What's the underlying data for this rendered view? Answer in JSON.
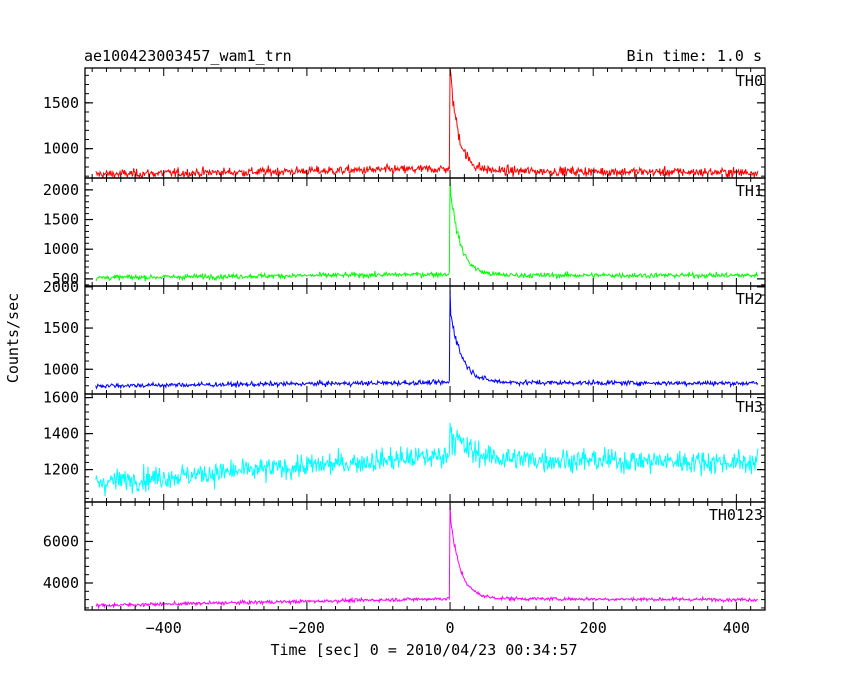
{
  "chart_data": {
    "type": "line",
    "title": "ae100423003457_wam1_trn",
    "bin_time_label": "Bin time: 1.0 s",
    "xlabel": "Time [sec] 0 = 2010/04/23 00:34:57",
    "ylabel": "Counts/sec",
    "xlim": [
      -510,
      440
    ],
    "x_ticks": [
      -400,
      -200,
      0,
      200,
      400
    ],
    "x_tick_labels": [
      "−400",
      "−200",
      "0",
      "200",
      "400"
    ],
    "grid": false,
    "legend": "none",
    "x_range": [
      -495,
      430
    ],
    "burst_time": 0,
    "panels": [
      {
        "name": "TH0",
        "color": "#ff0000",
        "ylim": [
          680,
          1880
        ],
        "y_ticks": [
          1000,
          1500
        ],
        "y_tick_labels": [
          "1000",
          "1500"
        ],
        "pre_start": 720,
        "pre_end": 780,
        "pre_noise": 35,
        "peak": 1880,
        "decay_tail": 760,
        "decay_amp": 1100,
        "decay_tau": 12,
        "post_end": 740,
        "post_noise": 35
      },
      {
        "name": "TH1",
        "color": "#00ff00",
        "ylim": [
          380,
          2200
        ],
        "y_ticks": [
          500,
          1000,
          1500,
          2000
        ],
        "y_tick_labels": [
          "500",
          "1000",
          "1500",
          "2000"
        ],
        "pre_start": 520,
        "pre_end": 580,
        "pre_noise": 30,
        "peak": 2180,
        "decay_tail": 560,
        "decay_amp": 1500,
        "decay_tau": 14,
        "post_end": 560,
        "post_noise": 30
      },
      {
        "name": "TH2",
        "color": "#0000ff",
        "ylim": [
          700,
          2010
        ],
        "y_ticks": [
          1000,
          1500,
          2000
        ],
        "y_tick_labels": [
          "1000",
          "1500",
          "2000"
        ],
        "pre_start": 800,
        "pre_end": 840,
        "pre_noise": 20,
        "peak": 1960,
        "decay_tail": 840,
        "decay_amp": 900,
        "decay_tau": 16,
        "post_end": 830,
        "post_noise": 20
      },
      {
        "name": "TH3",
        "color": "#00ffff",
        "ylim": [
          1020,
          1620
        ],
        "y_ticks": [
          1200,
          1400,
          1600
        ],
        "y_tick_labels": [
          "1200",
          "1400",
          "1600"
        ],
        "pre_start": 1130,
        "pre_end": 1280,
        "pre_noise": 45,
        "peak": 1460,
        "decay_tail": 1260,
        "decay_amp": 150,
        "decay_tau": 25,
        "post_end": 1240,
        "post_noise": 45
      },
      {
        "name": "TH0123",
        "color": "#ff00ff",
        "ylim": [
          2700,
          7900
        ],
        "y_ticks": [
          4000,
          6000
        ],
        "y_tick_labels": [
          "4000",
          "6000"
        ],
        "pre_start": 2920,
        "pre_end": 3250,
        "pre_noise": 60,
        "peak": 7800,
        "decay_tail": 3250,
        "decay_amp": 4000,
        "decay_tau": 14,
        "post_end": 3200,
        "post_noise": 60
      }
    ]
  }
}
